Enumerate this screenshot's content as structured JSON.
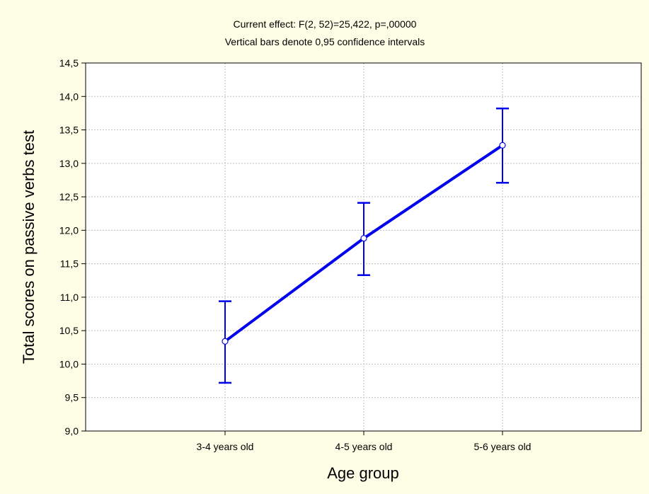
{
  "colors": {
    "background": "#fefee6",
    "plot_background": "#ffffff",
    "series": "#0000ee",
    "grid": "#c0c0c0"
  },
  "chart_data": {
    "type": "line",
    "title": "Current effect: F(2, 52)=25,422, p=,00000",
    "subtitle": "Vertical bars denote 0,95 confidence intervals",
    "xlabel": "Age group",
    "ylabel": "Total scores on passive verbs test",
    "categories": [
      "3-4 years old",
      "4-5 years old",
      "5-6 years old"
    ],
    "series": [
      {
        "values": [
          10.34,
          11.88,
          13.27
        ],
        "ci_lower": [
          9.72,
          11.33,
          12.71
        ],
        "ci_upper": [
          10.94,
          12.41,
          13.82
        ]
      }
    ],
    "ylim": [
      9.0,
      14.5
    ],
    "yticks": [
      "9,0",
      "9,5",
      "10,0",
      "10,5",
      "11,0",
      "11,5",
      "12,0",
      "12,5",
      "13,0",
      "13,5",
      "14,0",
      "14,5"
    ],
    "grid": true,
    "legend": "none"
  }
}
